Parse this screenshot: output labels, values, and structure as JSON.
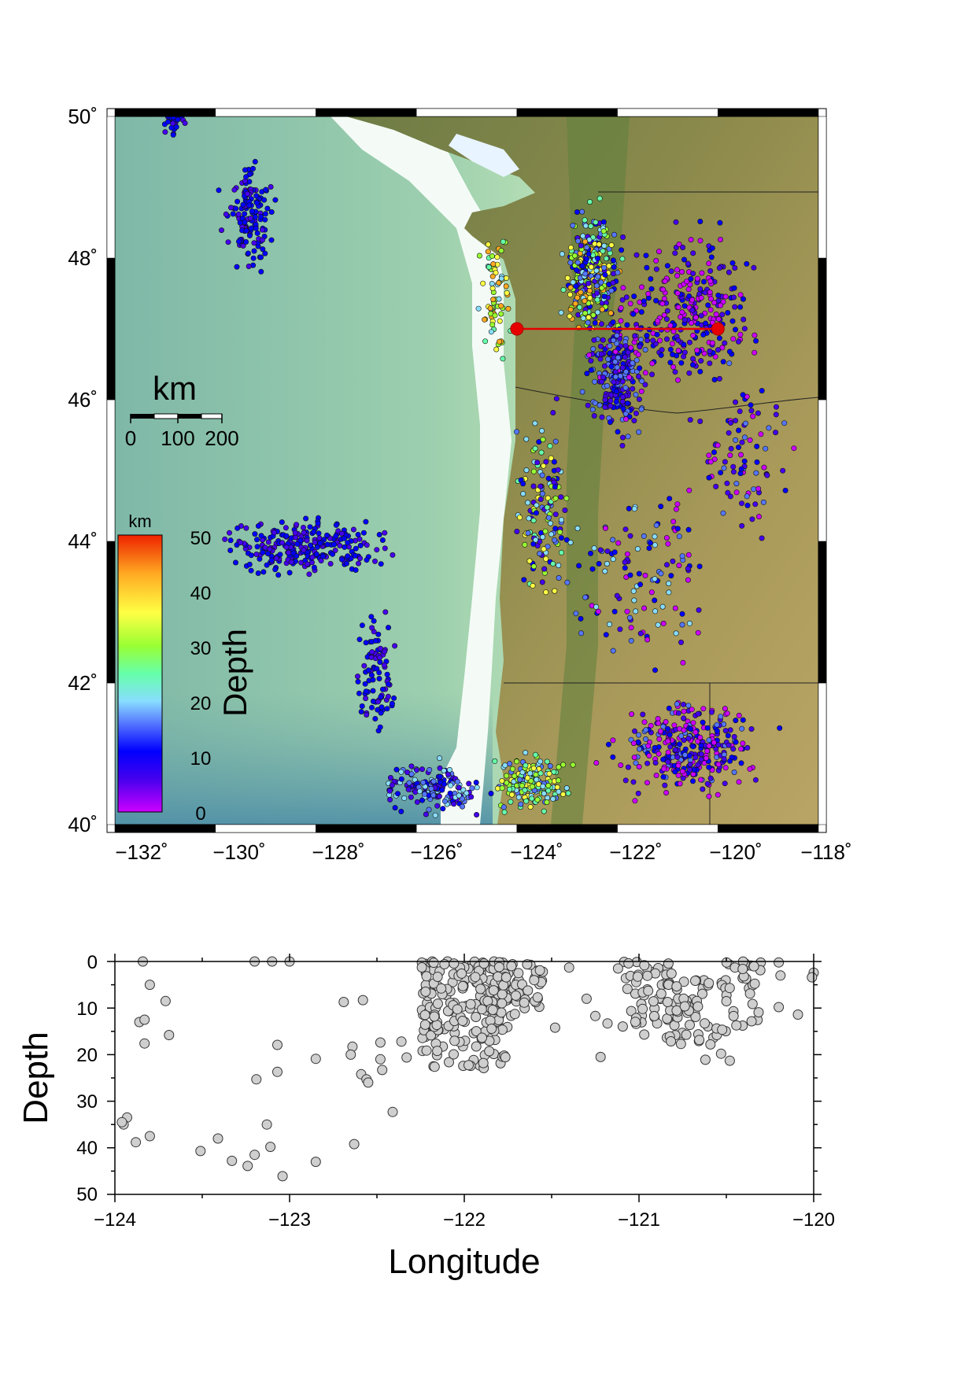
{
  "map": {
    "lon_range": [
      -132,
      -118
    ],
    "lat_range": [
      40,
      50
    ],
    "lon_ticks": [
      "−132˚",
      "−130˚",
      "−128˚",
      "−126˚",
      "−124˚",
      "−122˚",
      "−120˚",
      "−118˚"
    ],
    "lat_ticks": [
      "40˚",
      "42˚",
      "44˚",
      "46˚",
      "48˚",
      "50˚"
    ],
    "scale_bar": {
      "title": "km",
      "labels": [
        "0",
        "100",
        "200"
      ]
    },
    "depth_colorbar": {
      "unit": "km",
      "title": "Depth",
      "range": [
        0,
        50
      ],
      "tick_labels": [
        "0",
        "10",
        "20",
        "30",
        "40",
        "50"
      ],
      "colors": [
        "#cc00ff",
        "#4400ee",
        "#0000ff",
        "#5577ff",
        "#88ddff",
        "#66ffaa",
        "#99ff33",
        "#ffff44",
        "#ffaa22",
        "#ee2200"
      ]
    },
    "profile_line": {
      "lat": 47,
      "lon_start": -124,
      "lon_end": -120,
      "color": "#e60000"
    },
    "clusters": [
      {
        "lon": -129.3,
        "lat": 48.6,
        "spread": [
          0.4,
          0.7
        ],
        "depth": [
          8,
          14
        ],
        "count": 140
      },
      {
        "lon": -130.8,
        "lat": 49.9,
        "spread": [
          0.3,
          0.15
        ],
        "depth": [
          8,
          12
        ],
        "count": 25
      },
      {
        "lon": -128.2,
        "lat": 43.9,
        "spread": [
          1.5,
          0.35
        ],
        "depth": [
          8,
          13
        ],
        "count": 260
      },
      {
        "lon": -126.8,
        "lat": 42.2,
        "spread": [
          0.35,
          0.7
        ],
        "depth": [
          8,
          13
        ],
        "count": 90
      },
      {
        "lon": -125.6,
        "lat": 40.5,
        "spread": [
          0.9,
          0.3
        ],
        "depth": [
          5,
          25
        ],
        "count": 160
      },
      {
        "lon": -123.7,
        "lat": 40.6,
        "spread": [
          0.6,
          0.35
        ],
        "depth": [
          15,
          40
        ],
        "count": 180
      },
      {
        "lon": -122.5,
        "lat": 47.8,
        "spread": [
          0.5,
          0.7
        ],
        "depth": [
          5,
          45
        ],
        "count": 320
      },
      {
        "lon": -122.0,
        "lat": 46.4,
        "spread": [
          0.5,
          0.8
        ],
        "depth": [
          4,
          20
        ],
        "count": 260
      },
      {
        "lon": -120.6,
        "lat": 47.3,
        "spread": [
          1.2,
          0.9
        ],
        "depth": [
          0,
          15
        ],
        "count": 280
      },
      {
        "lon": -120.6,
        "lat": 41.1,
        "spread": [
          1.2,
          0.6
        ],
        "depth": [
          0,
          18
        ],
        "count": 300
      },
      {
        "lon": -123.5,
        "lat": 44.5,
        "spread": [
          0.5,
          1.2
        ],
        "depth": [
          5,
          40
        ],
        "count": 140
      },
      {
        "lon": -121.5,
        "lat": 43.5,
        "spread": [
          1.4,
          1.2
        ],
        "depth": [
          0,
          25
        ],
        "count": 120
      },
      {
        "lon": -119.5,
        "lat": 45.2,
        "spread": [
          0.8,
          1.0
        ],
        "depth": [
          0,
          20
        ],
        "count": 90
      },
      {
        "lon": -124.4,
        "lat": 47.5,
        "spread": [
          0.3,
          1.0
        ],
        "depth": [
          20,
          45
        ],
        "count": 70
      }
    ]
  },
  "profile": {
    "xlabel": "Longitude",
    "ylabel": "Depth",
    "xlim": [
      -124,
      -120
    ],
    "ylim": [
      0,
      50
    ],
    "x_tick_labels": [
      "−124",
      "−123",
      "−122",
      "−121",
      "−120"
    ],
    "y_tick_labels": [
      "0",
      "10",
      "20",
      "30",
      "40",
      "50"
    ],
    "chart_data": {
      "type": "scatter",
      "xlabel": "Longitude",
      "ylabel": "Depth",
      "xlim": [
        -124,
        -120
      ],
      "ylim": [
        50,
        0
      ],
      "grid": false,
      "points": [
        {
          "x": -123.84,
          "y": 0
        },
        {
          "x": -123.2,
          "y": 0
        },
        {
          "x": -123.1,
          "y": 0
        },
        {
          "x": -123.0,
          "y": 0
        },
        {
          "x": -123.8,
          "y": 5
        },
        {
          "x": -123.86,
          "y": 13
        },
        {
          "x": -123.83,
          "y": 12.5
        },
        {
          "x": -123.71,
          "y": 8.5
        },
        {
          "x": -123.69,
          "y": 15.8
        },
        {
          "x": -123.83,
          "y": 17.6
        },
        {
          "x": -123.93,
          "y": 33.5
        },
        {
          "x": -123.95,
          "y": 35
        },
        {
          "x": -123.96,
          "y": 34.5
        },
        {
          "x": -123.8,
          "y": 37.5
        },
        {
          "x": -123.88,
          "y": 38.8
        },
        {
          "x": -123.51,
          "y": 40.7
        },
        {
          "x": -123.41,
          "y": 38
        },
        {
          "x": -123.33,
          "y": 42.8
        },
        {
          "x": -123.24,
          "y": 43.9
        },
        {
          "x": -123.2,
          "y": 41.5
        },
        {
          "x": -123.13,
          "y": 35
        },
        {
          "x": -123.11,
          "y": 39.8
        },
        {
          "x": -123.04,
          "y": 46.1
        },
        {
          "x": -123.07,
          "y": 17.9
        },
        {
          "x": -123.07,
          "y": 23.7
        },
        {
          "x": -123.19,
          "y": 25.3
        },
        {
          "x": -122.85,
          "y": 20.9
        },
        {
          "x": -122.85,
          "y": 43
        },
        {
          "x": -122.69,
          "y": 8.7
        },
        {
          "x": -122.58,
          "y": 8.3
        },
        {
          "x": -122.64,
          "y": 18.3
        },
        {
          "x": -122.65,
          "y": 20
        },
        {
          "x": -122.59,
          "y": 24.2
        },
        {
          "x": -122.56,
          "y": 25.3
        },
        {
          "x": -122.55,
          "y": 26
        },
        {
          "x": -122.48,
          "y": 21
        },
        {
          "x": -122.47,
          "y": 23.3
        },
        {
          "x": -122.48,
          "y": 17.4
        },
        {
          "x": -122.36,
          "y": 17.2
        },
        {
          "x": -122.33,
          "y": 20.6
        },
        {
          "x": -122.63,
          "y": 39.2
        },
        {
          "x": -122.41,
          "y": 32.3
        },
        {
          "x": -121.48,
          "y": 14.2
        },
        {
          "x": -121.4,
          "y": 1.3
        },
        {
          "x": -121.3,
          "y": 8
        },
        {
          "x": -121.25,
          "y": 11.7
        },
        {
          "x": -121.18,
          "y": 13.3
        },
        {
          "x": -121.22,
          "y": 20.5
        },
        {
          "x": -121.12,
          "y": 1.5
        },
        {
          "x": -121.06,
          "y": 0.4
        },
        {
          "x": -120.97,
          "y": 15.7
        },
        {
          "x": -120.76,
          "y": 17.7
        },
        {
          "x": -120.62,
          "y": 21.1
        },
        {
          "x": -120.53,
          "y": 19.8
        },
        {
          "x": -120.48,
          "y": 21.3
        },
        {
          "x": -120.2,
          "y": 0.2
        },
        {
          "x": -120.19,
          "y": 3
        },
        {
          "x": -120.2,
          "y": 9.8
        },
        {
          "x": -120.09,
          "y": 11.4
        },
        {
          "x": -120.0,
          "y": 2.4
        },
        {
          "x": -120.01,
          "y": 3.4
        },
        {
          "x": -121.69,
          "y": 2.5
        },
        {
          "x": -121.73,
          "y": 1
        },
        {
          "x": -121.64,
          "y": 0.6
        },
        {
          "x": -121.6,
          "y": 4
        },
        {
          "x": -121.58,
          "y": 7.7
        },
        {
          "x": -121.8,
          "y": 1.2
        },
        {
          "x": -121.76,
          "y": 3.4
        }
      ],
      "dense_clusters": [
        {
          "x_range": [
            -122.25,
            -121.75
          ],
          "y_range": [
            0,
            23
          ],
          "count": 180
        },
        {
          "x_range": [
            -121.85,
            -121.55
          ],
          "y_range": [
            0,
            12
          ],
          "count": 60
        },
        {
          "x_range": [
            -121.1,
            -120.8
          ],
          "y_range": [
            0,
            14
          ],
          "count": 45
        },
        {
          "x_range": [
            -120.85,
            -120.5
          ],
          "y_range": [
            4,
            18
          ],
          "count": 60
        },
        {
          "x_range": [
            -120.5,
            -120.3
          ],
          "y_range": [
            0,
            14
          ],
          "count": 30
        }
      ]
    }
  }
}
